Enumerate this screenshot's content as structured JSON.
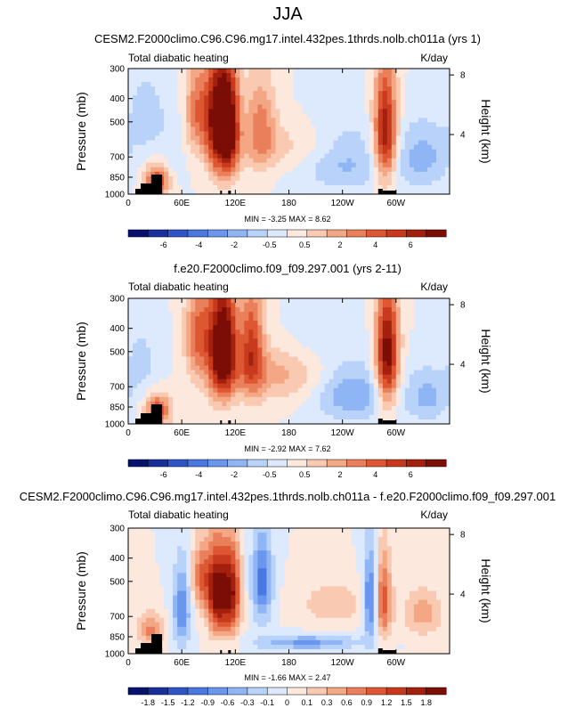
{
  "figure": {
    "title": "JJA"
  },
  "chart_data": [
    {
      "type": "heatmap",
      "title": "CESM2.F2000climo.C96.C96.mg17.intel.432pes.1thrds.nolb.ch011a (yrs 1)",
      "left_string": "Total diabatic heating",
      "units": "K/day",
      "ylabel": "Pressure (mb)",
      "ylabel_right": "Height (km)",
      "xticks": [
        "0",
        "60E",
        "120E",
        "180",
        "120W",
        "60W"
      ],
      "xtick_lon": [
        0,
        60,
        120,
        180,
        240,
        300
      ],
      "xlim": [
        0,
        360
      ],
      "yticks": [
        "300",
        "400",
        "500",
        "700",
        "850",
        "1000"
      ],
      "ytick_p": [
        300,
        400,
        500,
        700,
        850,
        1000
      ],
      "ylim_mb": [
        1000,
        300
      ],
      "height_ticks": [
        "8",
        "4"
      ],
      "height_km": [
        8,
        4
      ],
      "minmax_text": "MIN = -3.25   MAX = 8.62",
      "min": -3.25,
      "max": 8.62,
      "colorbar_labels": [
        "-6",
        "-4",
        "-2",
        "-0.5",
        "0.5",
        "2",
        "4",
        "6"
      ],
      "colors": [
        "#08126e",
        "#1a2f9e",
        "#2f55c8",
        "#4a77e0",
        "#6a96ee",
        "#8fb5f5",
        "#b8d2fa",
        "#dde9fc",
        "#fde8dd",
        "#f9c9b1",
        "#f4a784",
        "#ea805b",
        "#de5733",
        "#c83a1d",
        "#a3200f",
        "#7a0d06"
      ],
      "hotspots": [
        {
          "lon": 100,
          "p": 500,
          "v": 8.6,
          "wl": 9,
          "wp": 290
        },
        {
          "lon": 114,
          "p": 520,
          "v": 7.8,
          "wl": 8,
          "wp": 280
        },
        {
          "lon": 78,
          "p": 450,
          "v": 4.2,
          "wl": 10,
          "wp": 200
        },
        {
          "lon": 148,
          "p": 520,
          "v": 3.6,
          "wl": 12,
          "wp": 230
        },
        {
          "lon": 288,
          "p": 560,
          "v": 8.0,
          "wl": 9,
          "wp": 300
        },
        {
          "lon": 32,
          "p": 880,
          "v": 5.5,
          "wl": 10,
          "wp": 130
        },
        {
          "lon": 200,
          "p": 640,
          "v": 2.0,
          "wl": 50,
          "wp": 150
        },
        {
          "lon": 330,
          "p": 700,
          "v": -2.6,
          "wl": 22,
          "wp": 220
        },
        {
          "lon": 240,
          "p": 700,
          "v": -3.2,
          "wl": 35,
          "wp": 220
        },
        {
          "lon": 20,
          "p": 470,
          "v": -1.8,
          "wl": 14,
          "wp": 180
        },
        {
          "lon": 50,
          "p": 620,
          "v": -0.9,
          "wl": 10,
          "wp": 260
        }
      ]
    },
    {
      "type": "heatmap",
      "title": "f.e20.F2000climo.f09_f09.297.001 (yrs 2-11)",
      "left_string": "Total diabatic heating",
      "units": "K/day",
      "ylabel": "Pressure (mb)",
      "ylabel_right": "Height (km)",
      "xticks": [
        "0",
        "60E",
        "120E",
        "180",
        "120W",
        "60W"
      ],
      "xtick_lon": [
        0,
        60,
        120,
        180,
        240,
        300
      ],
      "xlim": [
        0,
        360
      ],
      "yticks": [
        "300",
        "400",
        "500",
        "700",
        "850",
        "1000"
      ],
      "ytick_p": [
        300,
        400,
        500,
        700,
        850,
        1000
      ],
      "ylim_mb": [
        1000,
        300
      ],
      "height_ticks": [
        "8",
        "4"
      ],
      "height_km": [
        8,
        4
      ],
      "minmax_text": "MIN = -2.92   MAX = 7.62",
      "min": -2.92,
      "max": 7.62,
      "colorbar_labels": [
        "-6",
        "-4",
        "-2",
        "-0.5",
        "0.5",
        "2",
        "4",
        "6"
      ],
      "colors": [
        "#08126e",
        "#1a2f9e",
        "#2f55c8",
        "#4a77e0",
        "#6a96ee",
        "#8fb5f5",
        "#b8d2fa",
        "#dde9fc",
        "#fde8dd",
        "#f9c9b1",
        "#f4a784",
        "#ea805b",
        "#de5733",
        "#c83a1d",
        "#a3200f",
        "#7a0d06"
      ],
      "hotspots": [
        {
          "lon": 100,
          "p": 480,
          "v": 6.0,
          "wl": 9,
          "wp": 280
        },
        {
          "lon": 112,
          "p": 480,
          "v": 5.5,
          "wl": 8,
          "wp": 260
        },
        {
          "lon": 78,
          "p": 430,
          "v": 4.0,
          "wl": 10,
          "wp": 200
        },
        {
          "lon": 138,
          "p": 480,
          "v": 4.8,
          "wl": 10,
          "wp": 260
        },
        {
          "lon": 290,
          "p": 520,
          "v": 7.6,
          "wl": 9,
          "wp": 300
        },
        {
          "lon": 33,
          "p": 880,
          "v": 5.0,
          "wl": 10,
          "wp": 130
        },
        {
          "lon": 170,
          "p": 620,
          "v": 2.2,
          "wl": 40,
          "wp": 170
        },
        {
          "lon": 250,
          "p": 750,
          "v": -2.9,
          "wl": 30,
          "wp": 200
        },
        {
          "lon": 335,
          "p": 770,
          "v": -2.2,
          "wl": 18,
          "wp": 200
        },
        {
          "lon": 15,
          "p": 550,
          "v": -1.2,
          "wl": 14,
          "wp": 220
        },
        {
          "lon": 210,
          "p": 450,
          "v": -0.8,
          "wl": 35,
          "wp": 120
        }
      ]
    },
    {
      "type": "heatmap",
      "title": "CESM2.F2000climo.C96.C96.mg17.intel.432pes.1thrds.nolb.ch011a - f.e20.F2000climo.f09_f09.297.001",
      "left_string": "Total diabatic heating",
      "units": "K/day",
      "ylabel": "Pressure (mb)",
      "ylabel_right": "Height (km)",
      "xticks": [
        "0",
        "60E",
        "120E",
        "180",
        "120W",
        "60W"
      ],
      "xtick_lon": [
        0,
        60,
        120,
        180,
        240,
        300
      ],
      "xlim": [
        0,
        360
      ],
      "yticks": [
        "300",
        "400",
        "500",
        "700",
        "850",
        "1000"
      ],
      "ytick_p": [
        300,
        400,
        500,
        700,
        850,
        1000
      ],
      "ylim_mb": [
        1000,
        300
      ],
      "height_ticks": [
        "8",
        "4"
      ],
      "height_km": [
        8,
        4
      ],
      "minmax_text": "MIN = -1.66   MAX = 2.47",
      "min": -1.66,
      "max": 2.47,
      "colorbar_labels": [
        "-1.8",
        "-1.5",
        "-1.2",
        "-0.9",
        "-0.6",
        "-0.3",
        "-0.1",
        "0",
        "0.1",
        "0.3",
        "0.6",
        "0.9",
        "1.2",
        "1.5",
        "1.8"
      ],
      "colors": [
        "#08126e",
        "#1a2f9e",
        "#2f55c8",
        "#4a77e0",
        "#6a96ee",
        "#8fb5f5",
        "#b8d2fa",
        "#dde9fc",
        "#fde8dd",
        "#f9c9b1",
        "#f4a784",
        "#ea805b",
        "#de5733",
        "#c83a1d",
        "#a3200f",
        "#7a0d06"
      ],
      "hotspots": [
        {
          "lon": 100,
          "p": 560,
          "v": 2.4,
          "wl": 8,
          "wp": 240
        },
        {
          "lon": 116,
          "p": 560,
          "v": 2.0,
          "wl": 7,
          "wp": 240
        },
        {
          "lon": 82,
          "p": 480,
          "v": 1.2,
          "wl": 8,
          "wp": 160
        },
        {
          "lon": 285,
          "p": 600,
          "v": 1.5,
          "wl": 7,
          "wp": 250
        },
        {
          "lon": 150,
          "p": 500,
          "v": -1.4,
          "wl": 8,
          "wp": 220
        },
        {
          "lon": 60,
          "p": 650,
          "v": -1.2,
          "wl": 7,
          "wp": 260
        },
        {
          "lon": 272,
          "p": 600,
          "v": -1.6,
          "wl": 6,
          "wp": 260
        },
        {
          "lon": 200,
          "p": 900,
          "v": -1.0,
          "wl": 40,
          "wp": 60
        },
        {
          "lon": 230,
          "p": 620,
          "v": 0.6,
          "wl": 25,
          "wp": 120
        },
        {
          "lon": 330,
          "p": 680,
          "v": 0.8,
          "wl": 16,
          "wp": 150
        },
        {
          "lon": 25,
          "p": 800,
          "v": 1.0,
          "wl": 10,
          "wp": 130
        }
      ]
    }
  ]
}
